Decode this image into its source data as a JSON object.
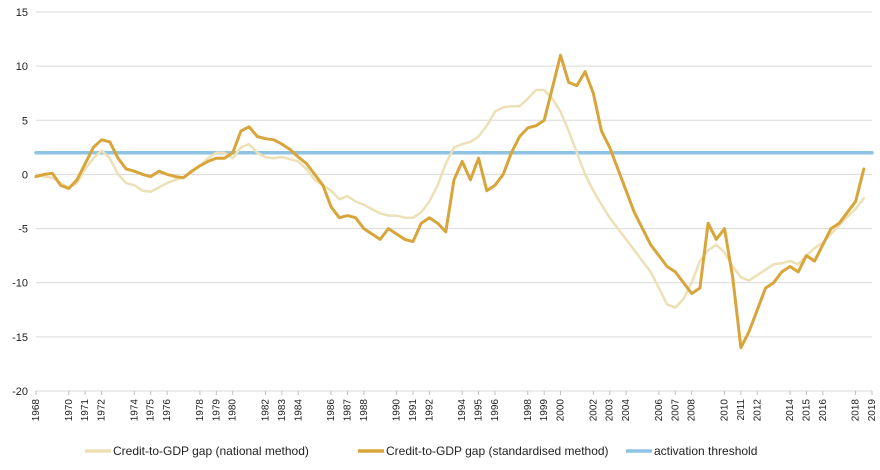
{
  "chart_data": {
    "type": "line",
    "title": "",
    "xlabel": "",
    "ylabel": "",
    "ylim": [
      -20,
      15
    ],
    "yticks": [
      15,
      10,
      5,
      0,
      -5,
      -10,
      -15,
      -20
    ],
    "xlim": [
      1968,
      2019
    ],
    "xticks": [
      1968,
      1970,
      1971,
      1972,
      1974,
      1975,
      1976,
      1978,
      1979,
      1980,
      1982,
      1983,
      1984,
      1986,
      1987,
      1988,
      1990,
      1991,
      1992,
      1994,
      1995,
      1996,
      1998,
      1999,
      2000,
      2002,
      2003,
      2004,
      2006,
      2007,
      2008,
      2010,
      2011,
      2012,
      2014,
      2015,
      2016,
      2018,
      2019
    ],
    "grid": "horizontal",
    "legend_position": "bottom",
    "series": [
      {
        "name": "Credit-to-GDP gap (national method)",
        "color": "#ede0b6",
        "x": [
          1968.0,
          1968.5,
          1969.0,
          1969.5,
          1970.0,
          1970.5,
          1971.0,
          1971.5,
          1972.0,
          1972.5,
          1973.0,
          1973.5,
          1974.0,
          1974.5,
          1975.0,
          1975.5,
          1976.0,
          1976.5,
          1977.0,
          1977.5,
          1978.0,
          1978.5,
          1979.0,
          1979.5,
          1980.0,
          1980.5,
          1981.0,
          1981.5,
          1982.0,
          1982.5,
          1983.0,
          1983.5,
          1984.0,
          1984.5,
          1985.0,
          1985.5,
          1986.0,
          1986.5,
          1987.0,
          1987.5,
          1988.0,
          1988.5,
          1989.0,
          1989.5,
          1990.0,
          1990.5,
          1991.0,
          1991.5,
          1992.0,
          1992.5,
          1993.0,
          1993.5,
          1994.0,
          1994.5,
          1995.0,
          1995.5,
          1996.0,
          1996.5,
          1997.0,
          1997.5,
          1998.0,
          1998.5,
          1999.0,
          1999.5,
          2000.0,
          2000.5,
          2001.0,
          2001.5,
          2002.0,
          2002.5,
          2003.0,
          2003.5,
          2004.0,
          2004.5,
          2005.0,
          2005.5,
          2006.0,
          2006.5,
          2007.0,
          2007.5,
          2008.0,
          2008.5,
          2009.0,
          2009.5,
          2010.0,
          2010.5,
          2011.0,
          2011.5,
          2012.0,
          2012.5,
          2013.0,
          2013.5,
          2014.0,
          2014.5,
          2015.0,
          2015.5,
          2016.0,
          2016.5,
          2017.0,
          2017.5,
          2018.0,
          2018.5
        ],
        "values": [
          0.0,
          -0.2,
          -0.3,
          -0.8,
          -1.2,
          -0.8,
          0.5,
          1.5,
          2.2,
          1.5,
          0.0,
          -0.8,
          -1.0,
          -1.5,
          -1.6,
          -1.2,
          -0.8,
          -0.5,
          -0.3,
          0.2,
          0.8,
          1.5,
          2.0,
          2.0,
          1.5,
          2.5,
          2.8,
          2.0,
          1.6,
          1.5,
          1.6,
          1.4,
          1.2,
          0.5,
          -0.5,
          -1.0,
          -1.5,
          -2.3,
          -2.0,
          -2.5,
          -2.8,
          -3.2,
          -3.6,
          -3.8,
          -3.8,
          -4.0,
          -4.0,
          -3.5,
          -2.5,
          -1.0,
          1.0,
          2.5,
          2.8,
          3.0,
          3.5,
          4.5,
          5.8,
          6.2,
          6.3,
          6.3,
          7.0,
          7.8,
          7.8,
          7.0,
          5.8,
          4.0,
          2.0,
          0.0,
          -1.5,
          -2.8,
          -4.0,
          -5.0,
          -6.0,
          -7.0,
          -8.0,
          -9.0,
          -10.5,
          -12.0,
          -12.3,
          -11.5,
          -10.0,
          -8.0,
          -7.0,
          -6.5,
          -7.2,
          -8.5,
          -9.5,
          -9.8,
          -9.3,
          -8.8,
          -8.3,
          -8.2,
          -8.0,
          -8.3,
          -7.5,
          -6.8,
          -6.3,
          -5.5,
          -4.7,
          -3.9,
          -3.2,
          -2.2
        ]
      },
      {
        "name": "Credit-to-GDP gap (standardised method)",
        "color": "#d8a53a",
        "x": [
          1968.0,
          1968.5,
          1969.0,
          1969.5,
          1970.0,
          1970.5,
          1971.0,
          1971.5,
          1972.0,
          1972.5,
          1973.0,
          1973.5,
          1974.0,
          1974.5,
          1975.0,
          1975.5,
          1976.0,
          1976.5,
          1977.0,
          1977.5,
          1978.0,
          1978.5,
          1979.0,
          1979.5,
          1980.0,
          1980.5,
          1981.0,
          1981.5,
          1982.0,
          1982.5,
          1983.0,
          1983.5,
          1984.0,
          1984.5,
          1985.0,
          1985.5,
          1986.0,
          1986.5,
          1987.0,
          1987.5,
          1988.0,
          1988.5,
          1989.0,
          1989.5,
          1990.0,
          1990.5,
          1991.0,
          1991.5,
          1992.0,
          1992.5,
          1993.0,
          1993.5,
          1994.0,
          1994.5,
          1995.0,
          1995.5,
          1996.0,
          1996.5,
          1997.0,
          1997.5,
          1998.0,
          1998.5,
          1999.0,
          1999.5,
          2000.0,
          2000.5,
          2001.0,
          2001.5,
          2002.0,
          2002.5,
          2003.0,
          2003.5,
          2004.0,
          2004.5,
          2005.0,
          2005.5,
          2006.0,
          2006.5,
          2007.0,
          2007.5,
          2008.0,
          2008.5,
          2009.0,
          2009.5,
          2010.0,
          2010.5,
          2011.0,
          2011.5,
          2012.0,
          2012.5,
          2013.0,
          2013.5,
          2014.0,
          2014.5,
          2015.0,
          2015.5,
          2016.0,
          2016.5,
          2017.0,
          2017.5,
          2018.0,
          2018.5
        ],
        "values": [
          -0.2,
          0.0,
          0.1,
          -1.0,
          -1.3,
          -0.5,
          1.0,
          2.5,
          3.2,
          3.0,
          1.5,
          0.5,
          0.3,
          0.0,
          -0.2,
          0.3,
          0.0,
          -0.2,
          -0.3,
          0.3,
          0.8,
          1.2,
          1.5,
          1.5,
          2.0,
          4.0,
          4.4,
          3.5,
          3.3,
          3.2,
          2.8,
          2.3,
          1.6,
          1.0,
          0.0,
          -1.0,
          -3.0,
          -4.0,
          -3.8,
          -4.0,
          -5.0,
          -5.5,
          -6.0,
          -5.0,
          -5.5,
          -6.0,
          -6.2,
          -4.5,
          -4.0,
          -4.5,
          -5.3,
          -0.5,
          1.2,
          -0.5,
          1.5,
          -1.5,
          -1.0,
          0.0,
          2.0,
          3.5,
          4.3,
          4.5,
          5.0,
          8.0,
          11.0,
          8.5,
          8.2,
          9.5,
          7.5,
          4.0,
          2.5,
          0.5,
          -1.5,
          -3.5,
          -5.0,
          -6.5,
          -7.5,
          -8.5,
          -9.0,
          -10.0,
          -11.0,
          -10.5,
          -4.5,
          -6.0,
          -5.0,
          -9.5,
          -16.0,
          -14.5,
          -12.5,
          -10.5,
          -10.0,
          -9.0,
          -8.5,
          -9.0,
          -7.5,
          -8.0,
          -6.5,
          -5.0,
          -4.5,
          -3.5,
          -2.5,
          0.5
        ]
      },
      {
        "name": "activation threshold",
        "color": "#8ec3e3",
        "x": [
          1968.0,
          2019.0
        ],
        "values": [
          2.0,
          2.0
        ]
      }
    ]
  }
}
